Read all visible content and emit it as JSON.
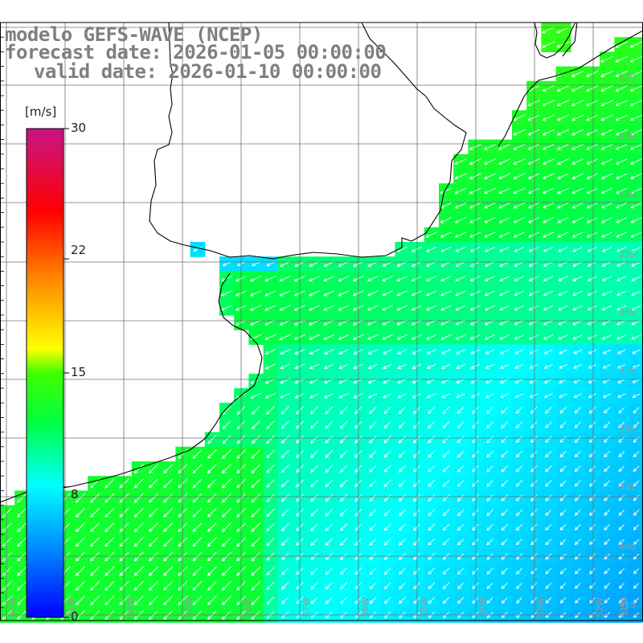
{
  "title": {
    "line1": "modelo GEFS-WAVE (NCEP)",
    "line2": "forecast date: 2026-01-05 00:00:00",
    "line3": "valid date: 2026-01-10 00:00:00"
  },
  "colorbar": {
    "unit": "[m/s]",
    "ticks": [
      "30",
      "22",
      "15",
      "8",
      "0"
    ],
    "tick_values": [
      30,
      22,
      15,
      8,
      0
    ],
    "range": [
      0,
      30
    ],
    "colors": [
      "#0000ff",
      "#00ffff",
      "#00ff00",
      "#ffff00",
      "#ff8000",
      "#ff0000",
      "#c71585"
    ]
  },
  "map": {
    "lat_labels": [
      "32S",
      "33S",
      "34S",
      "35S",
      "36S",
      "37S",
      "38S",
      "39S",
      "40S",
      "41S"
    ],
    "lon_labels": [
      "62W",
      "61W",
      "60W",
      "59W",
      "58W",
      "57W",
      "56W",
      "55W",
      "54W",
      "53W",
      "52W",
      "51W"
    ],
    "lat_range": [
      -41.4,
      -30.6
    ],
    "lon_range": [
      -62.8,
      -51.6
    ],
    "land_color": "#ffffff",
    "grid_color": "#707070",
    "arrow_color": "#ffffff",
    "wind_direction": "from northeast"
  }
}
